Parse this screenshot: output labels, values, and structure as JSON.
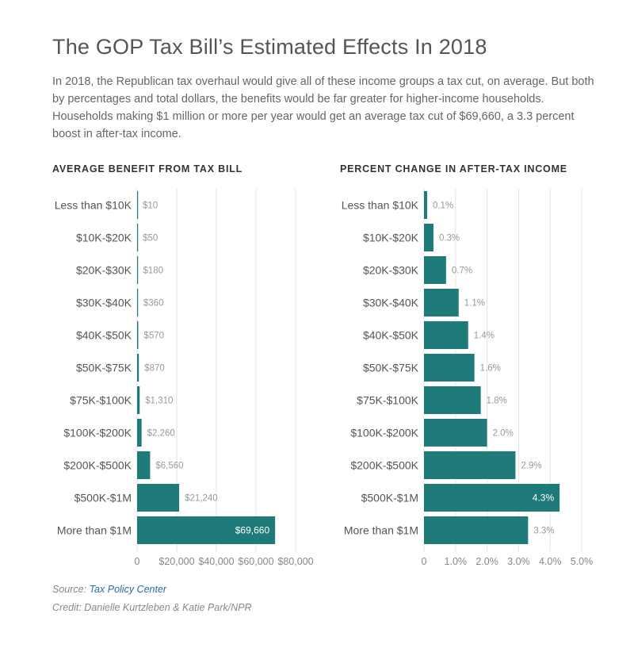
{
  "title": "The GOP Tax Bill’s Estimated Effects In 2018",
  "description": "In 2018, the Republican tax overhaul would give all of these income groups a tax cut, on average. But both by percentages and total dollars, the benefits would be far greater for higher-income households. Households making $1 million or more per year would get an average tax cut of $69,660, a 3.3 percent boost in after-tax income.",
  "source_label": "Source: ",
  "source_name": "Tax Policy Center",
  "credit": "Credit: Danielle Kurtzleben & Katie Park/NPR",
  "colors": {
    "bar": "#1f7a7a",
    "grid": "#e3e3e3",
    "label_text": "#999999",
    "inside_label": "#ffffff"
  },
  "chart_data": [
    {
      "type": "bar",
      "orientation": "horizontal",
      "title": "AVERAGE BENEFIT FROM TAX BILL",
      "categories": [
        "Less than $10K",
        "$10K-$20K",
        "$20K-$30K",
        "$30K-$40K",
        "$40K-$50K",
        "$50K-$75K",
        "$75K-$100K",
        "$100K-$200K",
        "$200K-$500K",
        "$500K-$1M",
        "More than $1M"
      ],
      "values": [
        10,
        50,
        180,
        360,
        570,
        870,
        1310,
        2260,
        6560,
        21240,
        69660
      ],
      "value_labels": [
        "$10",
        "$50",
        "$180",
        "$360",
        "$570",
        "$870",
        "$1,310",
        "$2,260",
        "$6,560",
        "$21,240",
        "$69,660"
      ],
      "inside_label_index": 10,
      "xlim": [
        0,
        80000
      ],
      "xticks": [
        0,
        20000,
        40000,
        60000,
        80000
      ],
      "xtick_labels": [
        "0",
        "$20,000",
        "$40,000",
        "$60,000",
        "$80,000"
      ],
      "grid": true
    },
    {
      "type": "bar",
      "orientation": "horizontal",
      "title": "PERCENT CHANGE IN AFTER-TAX INCOME",
      "categories": [
        "Less than $10K",
        "$10K-$20K",
        "$20K-$30K",
        "$30K-$40K",
        "$40K-$50K",
        "$50K-$75K",
        "$75K-$100K",
        "$100K-$200K",
        "$200K-$500K",
        "$500K-$1M",
        "More than $1M"
      ],
      "values": [
        0.1,
        0.3,
        0.7,
        1.1,
        1.4,
        1.6,
        1.8,
        2.0,
        2.9,
        4.3,
        3.3
      ],
      "value_labels": [
        "0.1%",
        "0.3%",
        "0.7%",
        "1.1%",
        "1.4%",
        "1.6%",
        "1.8%",
        "2.0%",
        "2.9%",
        "4.3%",
        "3.3%"
      ],
      "inside_label_index": 9,
      "xlim": [
        0,
        5
      ],
      "xticks": [
        0,
        1,
        2,
        3,
        4,
        5
      ],
      "xtick_labels": [
        "0",
        "1.0%",
        "2.0%",
        "3.0%",
        "4.0%",
        "5.0%"
      ],
      "grid": true
    }
  ]
}
